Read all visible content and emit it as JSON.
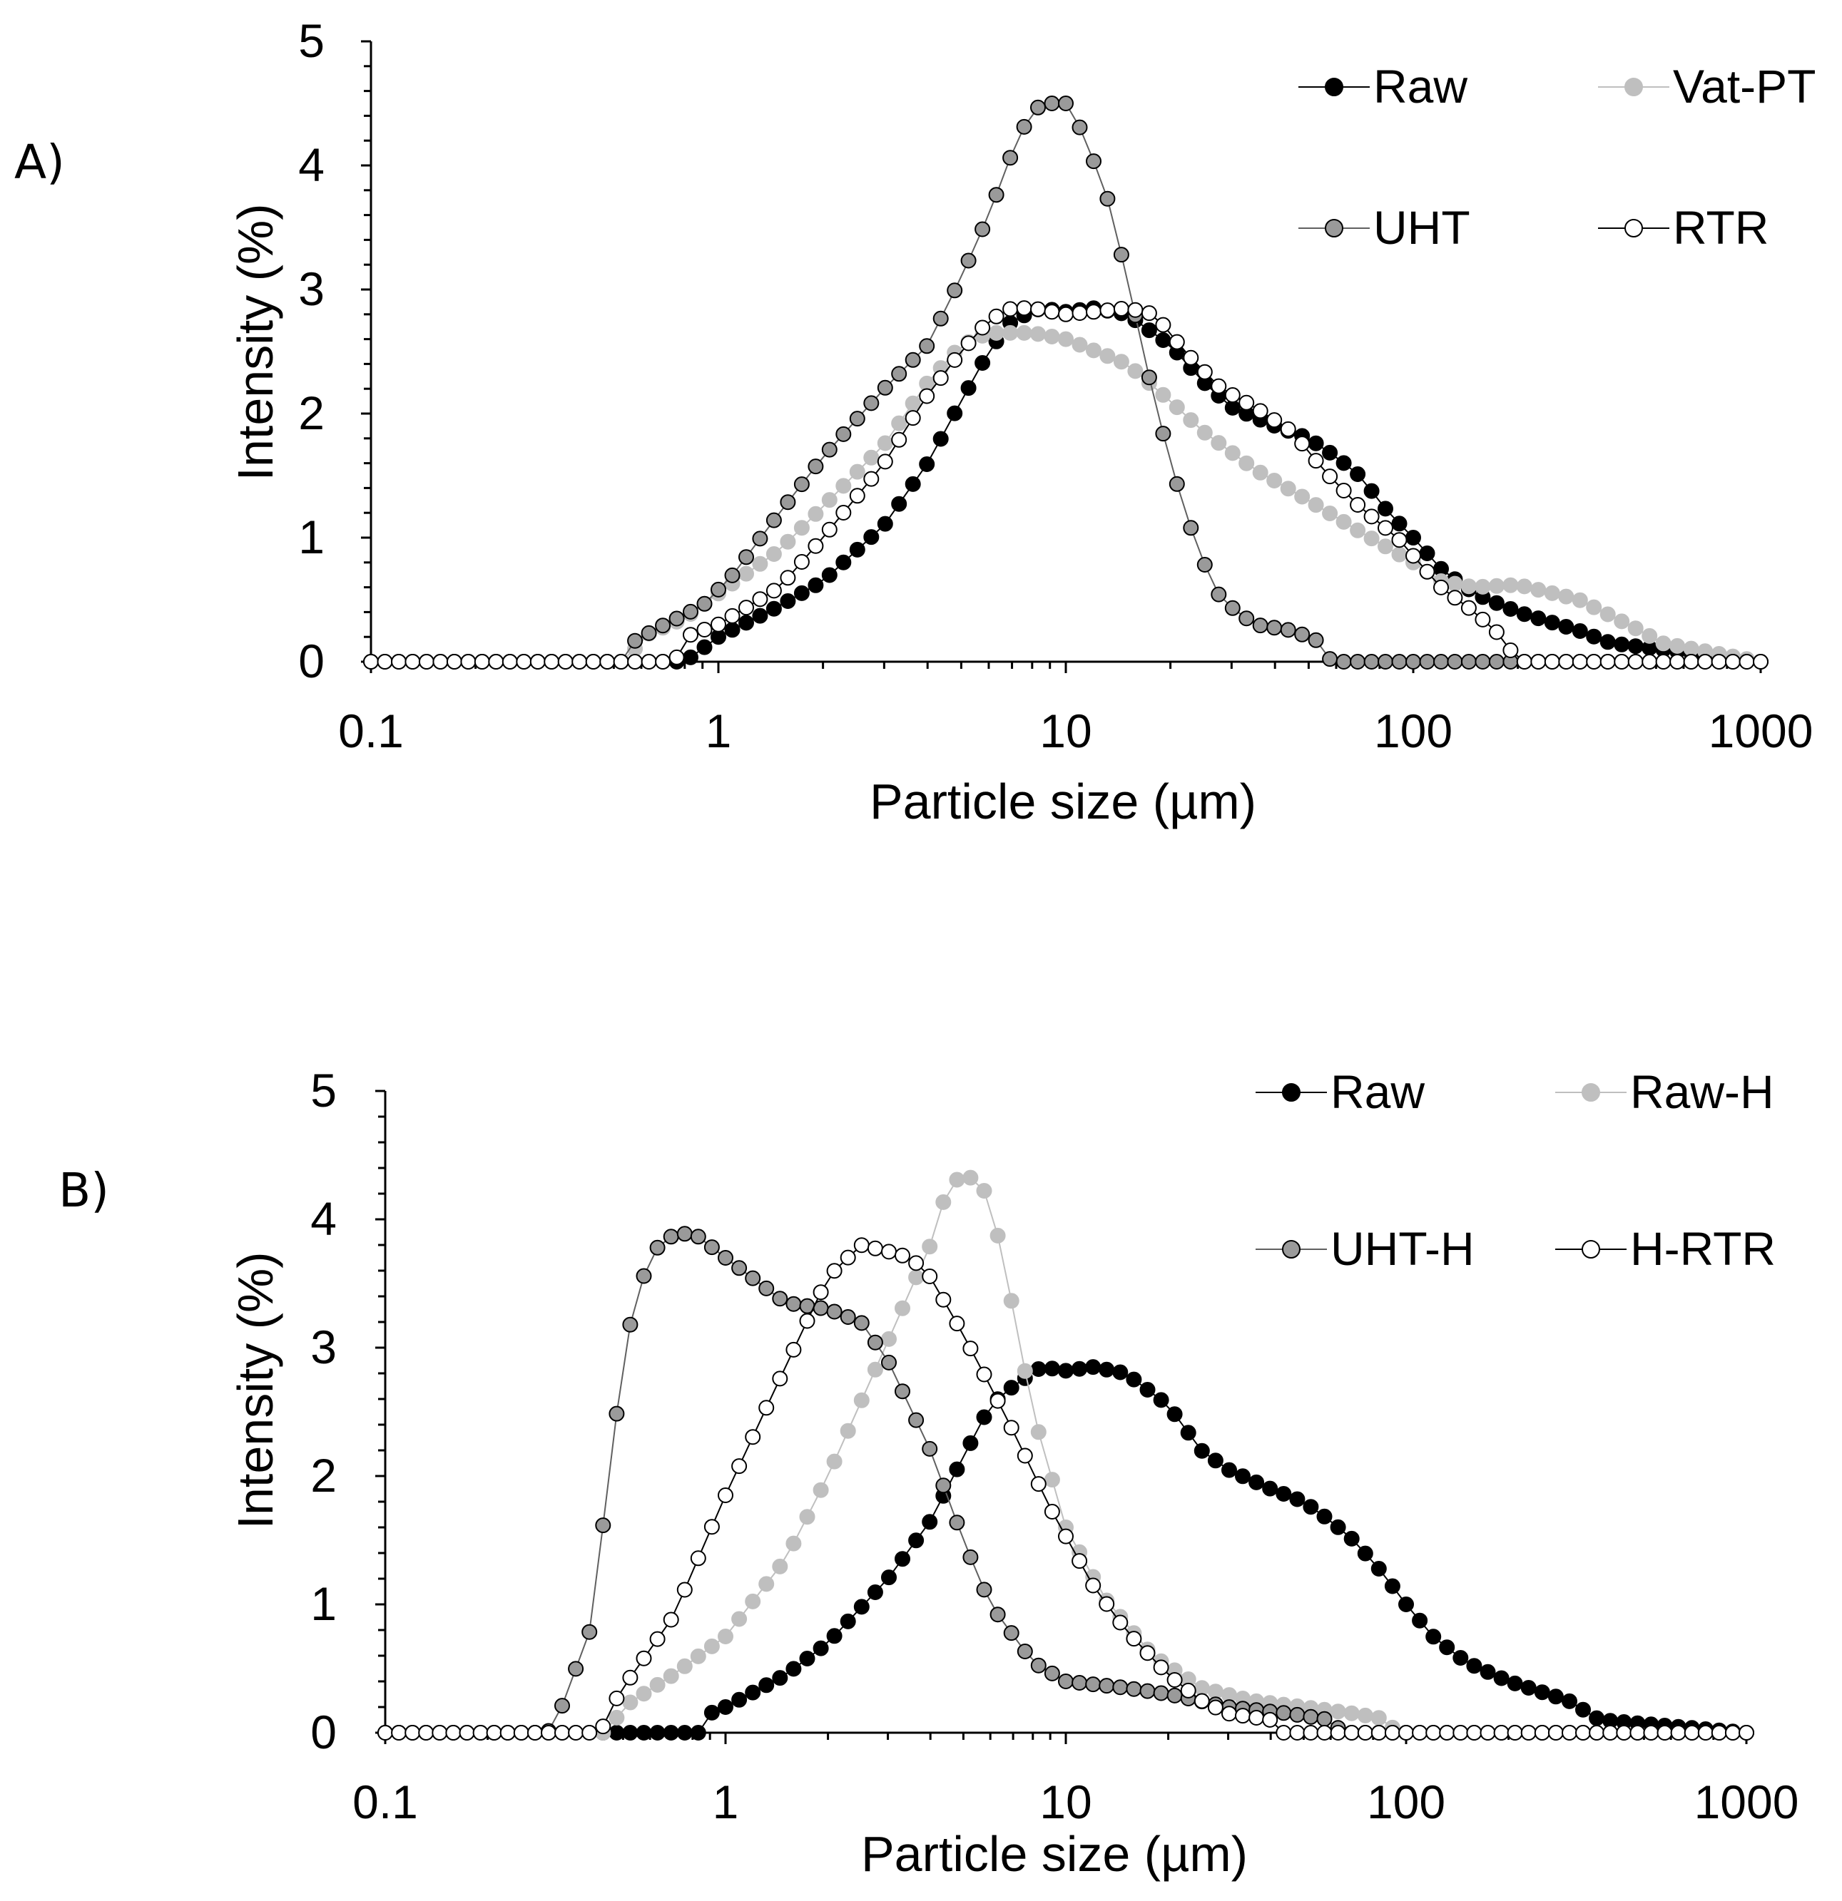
{
  "figure": {
    "panels": [
      {
        "label": "A)",
        "title": "",
        "legend": [
          "Raw",
          "Vat-PT",
          "UHT",
          "RTR"
        ]
      },
      {
        "label": "B)",
        "title": "",
        "legend": [
          "Raw",
          "Raw-H",
          "UHT-H",
          "H-RTR"
        ]
      }
    ]
  },
  "chart_data": [
    {
      "type": "scatter",
      "panel": "A)",
      "xscale": "log",
      "xlabel": "Particle size (µm)",
      "ylabel": "Intensity (%)",
      "xlim": [
        0.1,
        1000
      ],
      "ylim": [
        0,
        5
      ],
      "xticks": [
        "0.1",
        "1",
        "10",
        "100",
        "1000"
      ],
      "yticks": [
        "0",
        "1",
        "2",
        "3",
        "4",
        "5"
      ],
      "legend_position": "top-right",
      "x_range": [
        0.1,
        1000
      ],
      "points_per_decade": 25,
      "series": [
        {
          "name": "Raw",
          "style": "black",
          "points": [
            [
              0.1,
              0
            ],
            [
              0.8,
              0
            ],
            [
              1,
              0.2
            ],
            [
              1.5,
              0.45
            ],
            [
              2,
              0.65
            ],
            [
              3,
              1.1
            ],
            [
              4,
              1.6
            ],
            [
              5,
              2.1
            ],
            [
              6,
              2.5
            ],
            [
              7,
              2.75
            ],
            [
              8.5,
              2.85
            ],
            [
              10,
              2.82
            ],
            [
              12,
              2.85
            ],
            [
              15,
              2.8
            ],
            [
              20,
              2.55
            ],
            [
              25,
              2.25
            ],
            [
              30,
              2.05
            ],
            [
              40,
              1.9
            ],
            [
              50,
              1.8
            ],
            [
              60,
              1.65
            ],
            [
              70,
              1.5
            ],
            [
              85,
              1.2
            ],
            [
              100,
              1
            ],
            [
              120,
              0.75
            ],
            [
              150,
              0.55
            ],
            [
              200,
              0.4
            ],
            [
              300,
              0.25
            ],
            [
              370,
              0.15
            ],
            [
              1000,
              0
            ]
          ]
        },
        {
          "name": "Vat-PT",
          "style": "lightgray",
          "points": [
            [
              0.1,
              0
            ],
            [
              0.55,
              0
            ],
            [
              0.6,
              0.2
            ],
            [
              0.8,
              0.35
            ],
            [
              1,
              0.55
            ],
            [
              1.5,
              0.9
            ],
            [
              2,
              1.25
            ],
            [
              3,
              1.75
            ],
            [
              4,
              2.25
            ],
            [
              5,
              2.55
            ],
            [
              6,
              2.65
            ],
            [
              8,
              2.65
            ],
            [
              10,
              2.6
            ],
            [
              15,
              2.4
            ],
            [
              20,
              2.1
            ],
            [
              25,
              1.85
            ],
            [
              35,
              1.55
            ],
            [
              50,
              1.3
            ],
            [
              70,
              1.05
            ],
            [
              100,
              0.8
            ],
            [
              120,
              0.65
            ],
            [
              150,
              0.6
            ],
            [
              200,
              0.62
            ],
            [
              300,
              0.5
            ],
            [
              450,
              0.25
            ],
            [
              520,
              0.15
            ],
            [
              1000,
              0
            ]
          ]
        },
        {
          "name": "UHT",
          "style": "gray",
          "points": [
            [
              0.1,
              0
            ],
            [
              0.55,
              0
            ],
            [
              0.56,
              0.15
            ],
            [
              0.7,
              0.3
            ],
            [
              0.9,
              0.45
            ],
            [
              1.1,
              0.7
            ],
            [
              1.5,
              1.2
            ],
            [
              2,
              1.65
            ],
            [
              3,
              2.2
            ],
            [
              4,
              2.55
            ],
            [
              5,
              3.1
            ],
            [
              6,
              3.6
            ],
            [
              7,
              4.1
            ],
            [
              8,
              4.45
            ],
            [
              9,
              4.5
            ],
            [
              10,
              4.5
            ],
            [
              11,
              4.3
            ],
            [
              13,
              3.8
            ],
            [
              15,
              3.1
            ],
            [
              17,
              2.4
            ],
            [
              20,
              1.6
            ],
            [
              24,
              0.9
            ],
            [
              28,
              0.5
            ],
            [
              35,
              0.3
            ],
            [
              45,
              0.25
            ],
            [
              55,
              0.15
            ],
            [
              58,
              0
            ],
            [
              1000,
              0
            ]
          ]
        },
        {
          "name": "RTR",
          "style": "white",
          "points": [
            [
              0.1,
              0
            ],
            [
              0.75,
              0
            ],
            [
              0.8,
              0.2
            ],
            [
              1,
              0.3
            ],
            [
              1.5,
              0.6
            ],
            [
              2,
              1
            ],
            [
              3,
              1.6
            ],
            [
              4,
              2.15
            ],
            [
              5,
              2.5
            ],
            [
              6,
              2.75
            ],
            [
              7,
              2.85
            ],
            [
              8,
              2.85
            ],
            [
              10,
              2.8
            ],
            [
              12,
              2.82
            ],
            [
              15,
              2.85
            ],
            [
              18,
              2.8
            ],
            [
              22,
              2.5
            ],
            [
              28,
              2.2
            ],
            [
              35,
              2.05
            ],
            [
              45,
              1.85
            ],
            [
              55,
              1.55
            ],
            [
              70,
              1.25
            ],
            [
              90,
              1
            ],
            [
              120,
              0.6
            ],
            [
              150,
              0.4
            ],
            [
              180,
              0.2
            ],
            [
              200,
              0
            ],
            [
              1000,
              0
            ]
          ]
        }
      ]
    },
    {
      "type": "scatter",
      "panel": "B)",
      "xscale": "log",
      "xlabel": "Particle size (µm)",
      "ylabel": "Intensity (%)",
      "xlim": [
        0.1,
        1000
      ],
      "ylim": [
        0,
        5
      ],
      "xticks": [
        "0.1",
        "1",
        "10",
        "100",
        "1000"
      ],
      "yticks": [
        "0",
        "1",
        "2",
        "3",
        "4",
        "5"
      ],
      "legend_position": "top-right",
      "x_range": [
        0.1,
        1000
      ],
      "points_per_decade": 25,
      "series": [
        {
          "name": "Raw",
          "style": "black",
          "points": [
            [
              0.1,
              0
            ],
            [
              0.85,
              0
            ],
            [
              0.9,
              0.15
            ],
            [
              1,
              0.2
            ],
            [
              1.5,
              0.45
            ],
            [
              2,
              0.7
            ],
            [
              3,
              1.2
            ],
            [
              4,
              1.65
            ],
            [
              5,
              2.15
            ],
            [
              6,
              2.55
            ],
            [
              7,
              2.7
            ],
            [
              8.5,
              2.85
            ],
            [
              10,
              2.82
            ],
            [
              12,
              2.85
            ],
            [
              15,
              2.8
            ],
            [
              20,
              2.55
            ],
            [
              25,
              2.2
            ],
            [
              30,
              2.05
            ],
            [
              40,
              1.9
            ],
            [
              50,
              1.8
            ],
            [
              60,
              1.65
            ],
            [
              70,
              1.5
            ],
            [
              85,
              1.25
            ],
            [
              100,
              1
            ],
            [
              120,
              0.75
            ],
            [
              150,
              0.55
            ],
            [
              200,
              0.4
            ],
            [
              300,
              0.25
            ],
            [
              370,
              0.1
            ],
            [
              1000,
              0
            ]
          ]
        },
        {
          "name": "Raw-H",
          "style": "lightgray",
          "points": [
            [
              0.1,
              0
            ],
            [
              0.45,
              0
            ],
            [
              0.5,
              0.2
            ],
            [
              0.7,
              0.45
            ],
            [
              1,
              0.75
            ],
            [
              1.5,
              1.35
            ],
            [
              2,
              2
            ],
            [
              3,
              3.05
            ],
            [
              4,
              3.8
            ],
            [
              4.5,
              4.25
            ],
            [
              5,
              4.35
            ],
            [
              5.5,
              4.3
            ],
            [
              6,
              4.15
            ],
            [
              7,
              3.3
            ],
            [
              8,
              2.5
            ],
            [
              10,
              1.6
            ],
            [
              13,
              1.05
            ],
            [
              18,
              0.6
            ],
            [
              25,
              0.35
            ],
            [
              35,
              0.25
            ],
            [
              50,
              0.2
            ],
            [
              70,
              0.15
            ],
            [
              90,
              0.1
            ],
            [
              92,
              0
            ],
            [
              1000,
              0
            ]
          ]
        },
        {
          "name": "UHT-H",
          "style": "gray",
          "points": [
            [
              0.1,
              0
            ],
            [
              0.3,
              0
            ],
            [
              0.33,
              0.2
            ],
            [
              0.4,
              0.8
            ],
            [
              0.45,
              1.9
            ],
            [
              0.5,
              2.9
            ],
            [
              0.55,
              3.45
            ],
            [
              0.65,
              3.85
            ],
            [
              0.8,
              3.9
            ],
            [
              1,
              3.7
            ],
            [
              1.5,
              3.35
            ],
            [
              2,
              3.3
            ],
            [
              2.5,
              3.2
            ],
            [
              3,
              2.9
            ],
            [
              4,
              2.2
            ],
            [
              5,
              1.5
            ],
            [
              6,
              1
            ],
            [
              8,
              0.55
            ],
            [
              10,
              0.4
            ],
            [
              15,
              0.35
            ],
            [
              20,
              0.3
            ],
            [
              30,
              0.2
            ],
            [
              45,
              0.15
            ],
            [
              60,
              0.1
            ],
            [
              65,
              0
            ],
            [
              1000,
              0
            ]
          ]
        },
        {
          "name": "H-RTR",
          "style": "white",
          "points": [
            [
              0.1,
              0
            ],
            [
              0.43,
              0
            ],
            [
              0.45,
              0.15
            ],
            [
              0.5,
              0.35
            ],
            [
              0.7,
              0.9
            ],
            [
              1,
              1.85
            ],
            [
              1.5,
              2.85
            ],
            [
              2,
              3.55
            ],
            [
              2.5,
              3.8
            ],
            [
              3,
              3.75
            ],
            [
              3.5,
              3.7
            ],
            [
              4,
              3.55
            ],
            [
              5,
              3.1
            ],
            [
              6,
              2.7
            ],
            [
              7,
              2.35
            ],
            [
              9,
              1.75
            ],
            [
              12,
              1.15
            ],
            [
              15,
              0.8
            ],
            [
              20,
              0.45
            ],
            [
              25,
              0.25
            ],
            [
              30,
              0.15
            ],
            [
              40,
              0.1
            ],
            [
              42,
              0
            ],
            [
              1000,
              0
            ]
          ]
        }
      ]
    }
  ]
}
